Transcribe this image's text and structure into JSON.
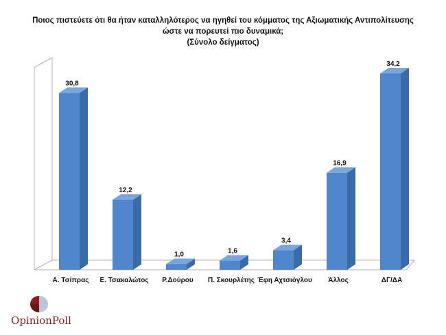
{
  "title": {
    "line1": "Ποιος πιστεύετε ότι θα ήταν καταλληλότερος  να ηγηθεί του κόμματος της Αξιωματικής Αντιπολίτευσης",
    "line2": "ώστε να πορευτεί πιο δυναμικά;",
    "line3": "(Σύνολο δείγματος)"
  },
  "chart_data": {
    "type": "bar",
    "categories": [
      "Α. Τσίπρας",
      "Ε. Τσακαλώτος",
      "Ρ.Δούρου",
      "Π. Σκουρλέτης",
      "Έφη Αχτσιόγλου",
      "Άλλος",
      "ΔΓ/ΔΑ"
    ],
    "values": [
      30.8,
      12.2,
      1.0,
      1.6,
      3.4,
      16.9,
      34.2
    ],
    "value_labels": [
      "30,8",
      "12,2",
      "1,0",
      "1,6",
      "3,4",
      "16,9",
      "34,2"
    ],
    "ylim": [
      0,
      34.2
    ],
    "bar_color": "#4f86cc",
    "bar_side_color": "#3a6aa8",
    "bar_top_color": "#7aa6dc",
    "grid": false
  },
  "logo": {
    "text": "OpinionPoll",
    "colors": {
      "dark": "#8b1c1c",
      "light": "#bfc3d6"
    }
  }
}
